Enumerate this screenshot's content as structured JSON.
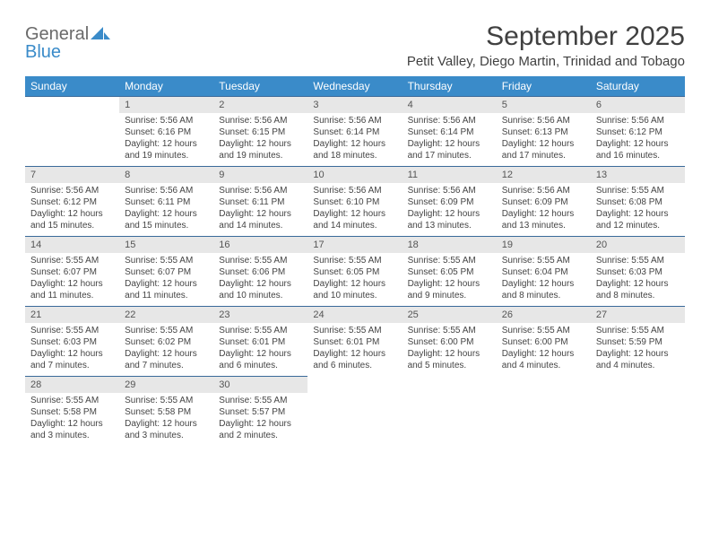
{
  "logo": {
    "word1": "General",
    "word2": "Blue",
    "word1_color": "#6a6a6a",
    "word2_color": "#3a8bc9",
    "shape_color": "#3a8bc9"
  },
  "title": "September 2025",
  "location": "Petit Valley, Diego Martin, Trinidad and Tobago",
  "colors": {
    "header_bg": "#3a8bc9",
    "header_text": "#ffffff",
    "row_border": "#3a6a9a",
    "daynum_bg": "#e7e7e7",
    "text": "#404040"
  },
  "weekdays": [
    "Sunday",
    "Monday",
    "Tuesday",
    "Wednesday",
    "Thursday",
    "Friday",
    "Saturday"
  ],
  "weeks": [
    [
      null,
      {
        "n": "1",
        "sunrise": "5:56 AM",
        "sunset": "6:16 PM",
        "daylight": "12 hours and 19 minutes."
      },
      {
        "n": "2",
        "sunrise": "5:56 AM",
        "sunset": "6:15 PM",
        "daylight": "12 hours and 19 minutes."
      },
      {
        "n": "3",
        "sunrise": "5:56 AM",
        "sunset": "6:14 PM",
        "daylight": "12 hours and 18 minutes."
      },
      {
        "n": "4",
        "sunrise": "5:56 AM",
        "sunset": "6:14 PM",
        "daylight": "12 hours and 17 minutes."
      },
      {
        "n": "5",
        "sunrise": "5:56 AM",
        "sunset": "6:13 PM",
        "daylight": "12 hours and 17 minutes."
      },
      {
        "n": "6",
        "sunrise": "5:56 AM",
        "sunset": "6:12 PM",
        "daylight": "12 hours and 16 minutes."
      }
    ],
    [
      {
        "n": "7",
        "sunrise": "5:56 AM",
        "sunset": "6:12 PM",
        "daylight": "12 hours and 15 minutes."
      },
      {
        "n": "8",
        "sunrise": "5:56 AM",
        "sunset": "6:11 PM",
        "daylight": "12 hours and 15 minutes."
      },
      {
        "n": "9",
        "sunrise": "5:56 AM",
        "sunset": "6:11 PM",
        "daylight": "12 hours and 14 minutes."
      },
      {
        "n": "10",
        "sunrise": "5:56 AM",
        "sunset": "6:10 PM",
        "daylight": "12 hours and 14 minutes."
      },
      {
        "n": "11",
        "sunrise": "5:56 AM",
        "sunset": "6:09 PM",
        "daylight": "12 hours and 13 minutes."
      },
      {
        "n": "12",
        "sunrise": "5:56 AM",
        "sunset": "6:09 PM",
        "daylight": "12 hours and 13 minutes."
      },
      {
        "n": "13",
        "sunrise": "5:55 AM",
        "sunset": "6:08 PM",
        "daylight": "12 hours and 12 minutes."
      }
    ],
    [
      {
        "n": "14",
        "sunrise": "5:55 AM",
        "sunset": "6:07 PM",
        "daylight": "12 hours and 11 minutes."
      },
      {
        "n": "15",
        "sunrise": "5:55 AM",
        "sunset": "6:07 PM",
        "daylight": "12 hours and 11 minutes."
      },
      {
        "n": "16",
        "sunrise": "5:55 AM",
        "sunset": "6:06 PM",
        "daylight": "12 hours and 10 minutes."
      },
      {
        "n": "17",
        "sunrise": "5:55 AM",
        "sunset": "6:05 PM",
        "daylight": "12 hours and 10 minutes."
      },
      {
        "n": "18",
        "sunrise": "5:55 AM",
        "sunset": "6:05 PM",
        "daylight": "12 hours and 9 minutes."
      },
      {
        "n": "19",
        "sunrise": "5:55 AM",
        "sunset": "6:04 PM",
        "daylight": "12 hours and 8 minutes."
      },
      {
        "n": "20",
        "sunrise": "5:55 AM",
        "sunset": "6:03 PM",
        "daylight": "12 hours and 8 minutes."
      }
    ],
    [
      {
        "n": "21",
        "sunrise": "5:55 AM",
        "sunset": "6:03 PM",
        "daylight": "12 hours and 7 minutes."
      },
      {
        "n": "22",
        "sunrise": "5:55 AM",
        "sunset": "6:02 PM",
        "daylight": "12 hours and 7 minutes."
      },
      {
        "n": "23",
        "sunrise": "5:55 AM",
        "sunset": "6:01 PM",
        "daylight": "12 hours and 6 minutes."
      },
      {
        "n": "24",
        "sunrise": "5:55 AM",
        "sunset": "6:01 PM",
        "daylight": "12 hours and 6 minutes."
      },
      {
        "n": "25",
        "sunrise": "5:55 AM",
        "sunset": "6:00 PM",
        "daylight": "12 hours and 5 minutes."
      },
      {
        "n": "26",
        "sunrise": "5:55 AM",
        "sunset": "6:00 PM",
        "daylight": "12 hours and 4 minutes."
      },
      {
        "n": "27",
        "sunrise": "5:55 AM",
        "sunset": "5:59 PM",
        "daylight": "12 hours and 4 minutes."
      }
    ],
    [
      {
        "n": "28",
        "sunrise": "5:55 AM",
        "sunset": "5:58 PM",
        "daylight": "12 hours and 3 minutes."
      },
      {
        "n": "29",
        "sunrise": "5:55 AM",
        "sunset": "5:58 PM",
        "daylight": "12 hours and 3 minutes."
      },
      {
        "n": "30",
        "sunrise": "5:55 AM",
        "sunset": "5:57 PM",
        "daylight": "12 hours and 2 minutes."
      },
      null,
      null,
      null,
      null
    ]
  ],
  "labels": {
    "sunrise": "Sunrise:",
    "sunset": "Sunset:",
    "daylight": "Daylight:"
  }
}
